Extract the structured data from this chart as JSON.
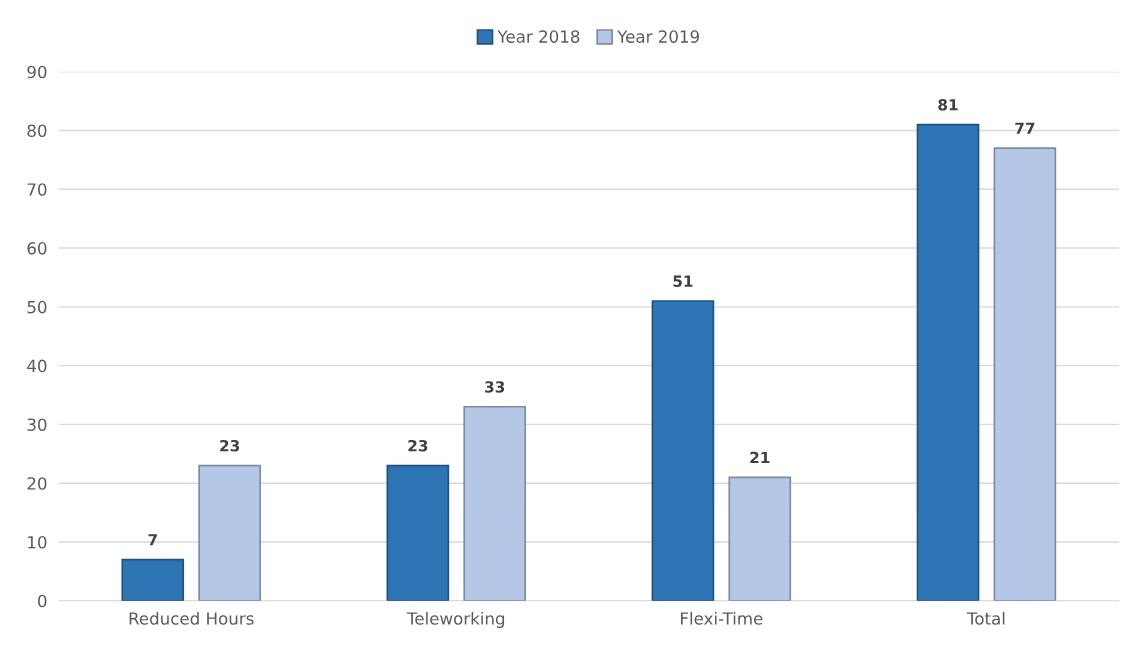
{
  "chart_data": {
    "type": "bar",
    "categories": [
      "Reduced Hours",
      "Teleworking",
      "Flexi-Time",
      "Total"
    ],
    "series": [
      {
        "name": "Year 2018",
        "color": "#2e75b6",
        "values": [
          7,
          23,
          51,
          81
        ]
      },
      {
        "name": "Year 2019",
        "color": "#b4c7e7",
        "values": [
          23,
          33,
          21,
          77
        ]
      }
    ],
    "ylim": [
      0,
      90
    ],
    "yticks": [
      0,
      10,
      20,
      30,
      40,
      50,
      60,
      70,
      80,
      90
    ],
    "grid": "y",
    "legend": "top",
    "data_labels": true
  }
}
